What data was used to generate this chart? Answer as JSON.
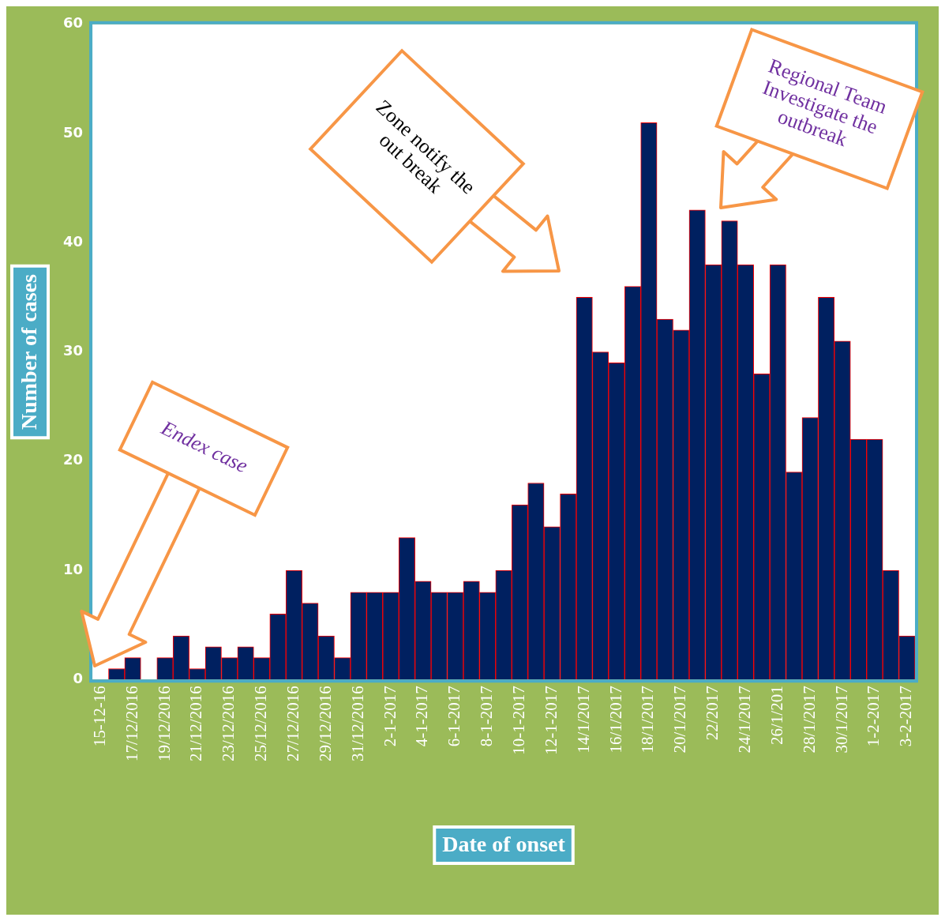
{
  "chart_data": {
    "type": "bar",
    "xlabel": "Date of onset",
    "ylabel": "Number of cases",
    "categories": [
      "15-12-16",
      null,
      "17/12/2016",
      null,
      "19/12/2016",
      null,
      "21/12/2016",
      null,
      "23/12/2016",
      null,
      "25/12/2016",
      null,
      "27/12/2016",
      null,
      "29/12/2016",
      null,
      "31/12/2016",
      null,
      "2-1-2017",
      null,
      "4-1-2017",
      null,
      "6-1-2017",
      null,
      "8-1-2017",
      null,
      "10-1-2017",
      null,
      "12-1-2017",
      null,
      "14/1/2017",
      null,
      "16/1/2017",
      null,
      "18/1/2017",
      null,
      "20/1/2017",
      null,
      "22/2017",
      null,
      "24/1/2017",
      null,
      "26/1/201",
      null,
      "28/1/2017",
      null,
      "30/1/2017",
      null,
      "1-2-2017",
      null,
      "3-2-2017"
    ],
    "values": [
      0,
      1,
      2,
      0,
      2,
      4,
      1,
      3,
      2,
      3,
      2,
      6,
      10,
      7,
      4,
      2,
      8,
      8,
      8,
      13,
      9,
      8,
      8,
      9,
      8,
      10,
      16,
      18,
      14,
      17,
      35,
      30,
      29,
      36,
      51,
      33,
      32,
      43,
      38,
      42,
      38,
      28,
      38,
      19,
      24,
      35,
      31,
      22,
      22,
      10,
      4
    ],
    "color": "#002060",
    "ylim": [
      0,
      60
    ],
    "yticks": [
      0,
      10,
      20,
      30,
      40,
      50,
      60
    ],
    "grid": false,
    "annotations": [
      "Endex case",
      "Zone notify the out break",
      "Regional Team Investigate the outbreak"
    ]
  }
}
